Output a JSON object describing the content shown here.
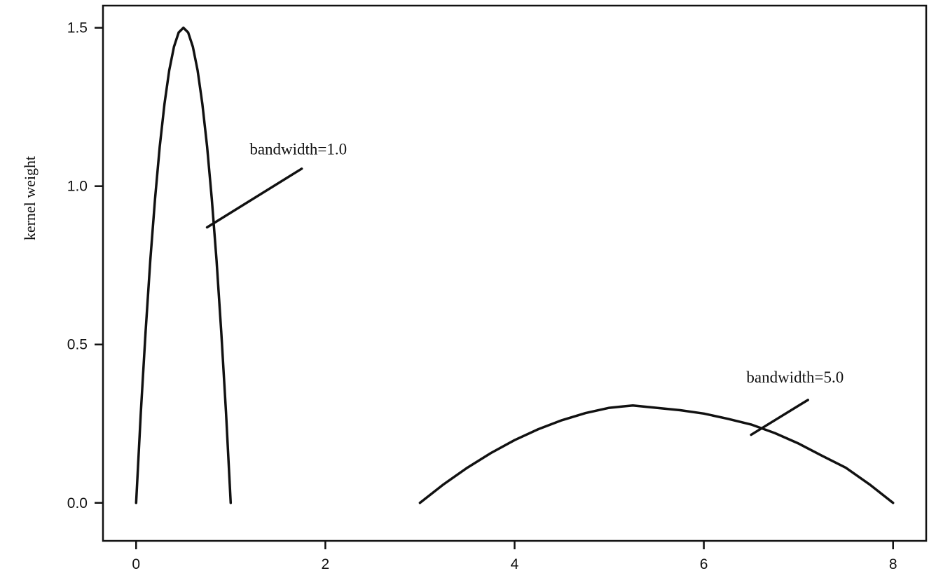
{
  "chart_data": {
    "type": "line",
    "title": "",
    "xlabel": "",
    "ylabel": "kernel weight",
    "xlim": [
      -0.35,
      8.35
    ],
    "ylim": [
      -0.12,
      1.57
    ],
    "xticks": [
      0,
      2,
      4,
      6,
      8
    ],
    "xtick_labels": [
      "0",
      "2",
      "4",
      "6",
      "8"
    ],
    "yticks": [
      0.0,
      0.5,
      1.0,
      1.5
    ],
    "ytick_labels": [
      "0.0",
      "0.5",
      "1.0",
      "1.5"
    ],
    "grid": false,
    "legend": "none",
    "series": [
      {
        "x": [
          0.0,
          0.05,
          0.1,
          0.15,
          0.2,
          0.25,
          0.3,
          0.35,
          0.4,
          0.45,
          0.5,
          0.55,
          0.6,
          0.65,
          0.7,
          0.75,
          0.8,
          0.85,
          0.9,
          0.95,
          1.0
        ],
        "y": [
          0.0,
          0.285,
          0.54,
          0.765,
          0.96,
          1.125,
          1.26,
          1.365,
          1.44,
          1.485,
          1.5,
          1.485,
          1.44,
          1.365,
          1.26,
          1.125,
          0.96,
          0.765,
          0.54,
          0.285,
          0.0
        ]
      },
      {
        "x": [
          3.0,
          3.25,
          3.5,
          3.75,
          4.0,
          4.25,
          4.5,
          4.75,
          5.0,
          5.25,
          5.5,
          5.75,
          6.0,
          6.25,
          6.5,
          6.75,
          7.0,
          7.25,
          7.5,
          7.75,
          8.0
        ],
        "y": [
          0.0,
          0.0585,
          0.111,
          0.1575,
          0.198,
          0.2325,
          0.261,
          0.2835,
          0.3,
          0.3075,
          0.3,
          0.2925,
          0.282,
          0.2655,
          0.2475,
          0.2205,
          0.1875,
          0.1485,
          0.111,
          0.0585,
          0.0
        ]
      }
    ],
    "annotations": [
      {
        "text": "bandwidth=1.0",
        "x": 1.2,
        "y": 1.1,
        "pointer_from": [
          1.75,
          1.055
        ],
        "pointer_to": [
          0.75,
          0.87
        ]
      },
      {
        "text": "bandwidth=5.0",
        "x": 6.45,
        "y": 0.38,
        "pointer_from": [
          7.1,
          0.325
        ],
        "pointer_to": [
          6.5,
          0.215
        ]
      }
    ]
  }
}
